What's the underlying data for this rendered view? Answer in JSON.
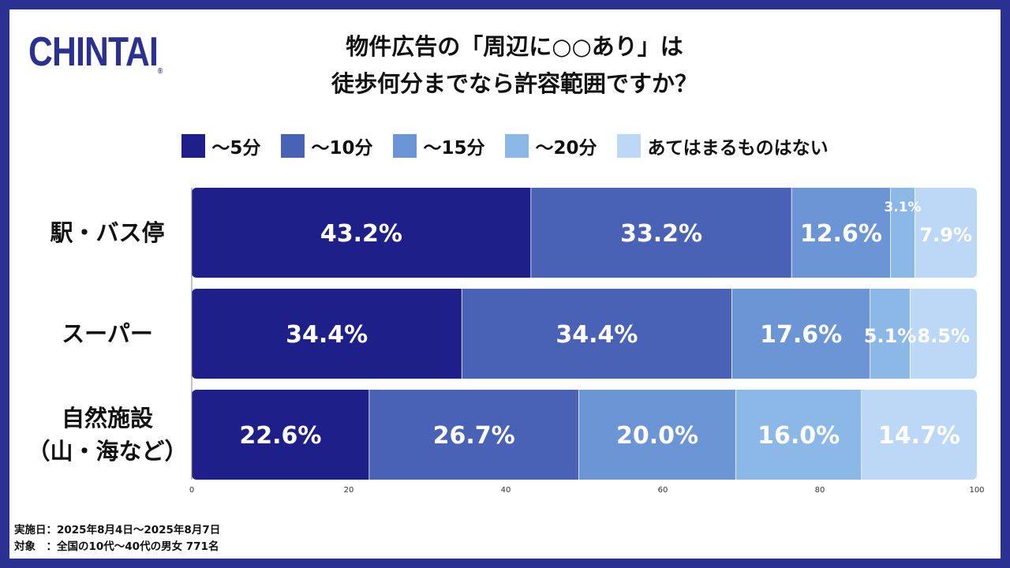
{
  "logo": {
    "text": "CHINTAI",
    "mark": "®"
  },
  "title_lines": [
    "物件広告の「周辺に○○あり」は",
    "徒歩何分までなら許容範囲ですか？"
  ],
  "legend": [
    {
      "label": "～5分",
      "color": "#1f1f8a"
    },
    {
      "label": "～10分",
      "color": "#4a62b6"
    },
    {
      "label": "～15分",
      "color": "#6b95d5"
    },
    {
      "label": "～20分",
      "color": "#8bb8e6"
    },
    {
      "label": "あてはまるものはない",
      "color": "#bcd8f6"
    }
  ],
  "chart_data": {
    "type": "bar",
    "orientation": "horizontal",
    "stacked": true,
    "categories": [
      "駅・バス停",
      "スーパー",
      "自然施設（山・海など）"
    ],
    "category_lines": [
      [
        "駅・バス停"
      ],
      [
        "スーパー"
      ],
      [
        "自然施設",
        "（山・海など）"
      ]
    ],
    "series": [
      {
        "name": "～5分",
        "values": [
          43.2,
          34.4,
          22.6
        ],
        "labels": [
          "43.2%",
          "34.4%",
          "22.6%"
        ],
        "color": "#1f1f8a"
      },
      {
        "name": "～10分",
        "values": [
          33.2,
          34.4,
          26.7
        ],
        "labels": [
          "33.2%",
          "34.4%",
          "26.7%"
        ],
        "color": "#4a62b6"
      },
      {
        "name": "～15分",
        "values": [
          12.6,
          17.6,
          20.0
        ],
        "labels": [
          "12.6%",
          "17.6%",
          "20.0%"
        ],
        "color": "#6b95d5"
      },
      {
        "name": "～20分",
        "values": [
          3.1,
          5.1,
          16.0
        ],
        "labels": [
          "3.1%",
          "5.1%",
          "16.0%"
        ],
        "color": "#8bb8e6"
      },
      {
        "name": "あてはまるものはない",
        "values": [
          7.9,
          8.5,
          14.7
        ],
        "labels": [
          "7.9%",
          "8.5%",
          "14.7%"
        ],
        "color": "#bcd8f6"
      }
    ],
    "xlim": [
      0,
      100
    ],
    "xticks": [
      "0",
      "20",
      "40",
      "60",
      "80",
      "100"
    ],
    "grid": false,
    "legend_position": "top"
  },
  "footnotes": [
    "実施日：2025年8月4日～2025年8月7日",
    "対象　：全国の10代～40代の男女 771名"
  ]
}
